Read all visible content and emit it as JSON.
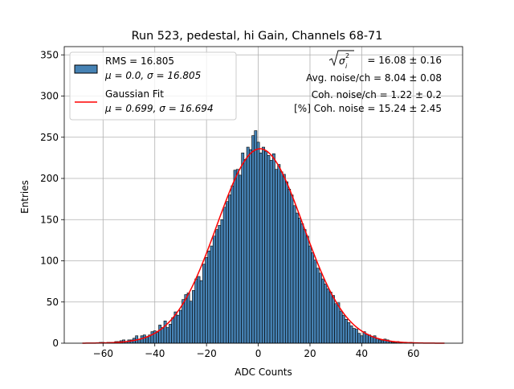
{
  "chart_data": {
    "type": "bar",
    "title": "Run 523, pedestal, hi Gain, Channels 68-71",
    "xlabel": "ADC Counts",
    "ylabel": "Entries",
    "xlim": [
      -75,
      79
    ],
    "ylim": [
      0,
      360
    ],
    "xticks": [
      -60,
      -40,
      -20,
      0,
      20,
      40,
      60
    ],
    "yticks": [
      0,
      50,
      100,
      150,
      200,
      250,
      300,
      350
    ],
    "grid": true,
    "legend_position": "top-left",
    "series": [
      {
        "name": "RMS = 16.805",
        "subtitle": "μ = 0.0, σ = 16.805",
        "kind": "histogram",
        "color": "#4682b4",
        "edge_color": "#000000",
        "bin_width": 1,
        "x": [
          -68,
          -67,
          -66,
          -65,
          -64,
          -63,
          -62,
          -61,
          -60,
          -59,
          -58,
          -57,
          -56,
          -55,
          -54,
          -53,
          -52,
          -51,
          -50,
          -49,
          -48,
          -47,
          -46,
          -45,
          -44,
          -43,
          -42,
          -41,
          -40,
          -39,
          -38,
          -37,
          -36,
          -35,
          -34,
          -33,
          -32,
          -31,
          -30,
          -29,
          -28,
          -27,
          -26,
          -25,
          -24,
          -23,
          -22,
          -21,
          -20,
          -19,
          -18,
          -17,
          -16,
          -15,
          -14,
          -13,
          -12,
          -11,
          -10,
          -9,
          -8,
          -7,
          -6,
          -5,
          -4,
          -3,
          -2,
          -1,
          0,
          1,
          2,
          3,
          4,
          5,
          6,
          7,
          8,
          9,
          10,
          11,
          12,
          13,
          14,
          15,
          16,
          17,
          18,
          19,
          20,
          21,
          22,
          23,
          24,
          25,
          26,
          27,
          28,
          29,
          30,
          31,
          32,
          33,
          34,
          35,
          36,
          37,
          38,
          39,
          40,
          41,
          42,
          43,
          44,
          45,
          46,
          47,
          48,
          49,
          50,
          51,
          52,
          53,
          54,
          55,
          56,
          57,
          58,
          59,
          60,
          61,
          62,
          63,
          64,
          65,
          66,
          67,
          68,
          69,
          70,
          71,
          72
        ],
        "values": [
          0,
          0,
          0,
          0,
          0,
          0,
          0,
          1,
          1,
          0,
          1,
          1,
          1,
          2,
          2,
          3,
          4,
          2,
          4,
          4,
          6,
          9,
          5,
          9,
          10,
          8,
          10,
          14,
          15,
          13,
          22,
          19,
          27,
          19,
          23,
          31,
          38,
          34,
          40,
          53,
          59,
          61,
          51,
          64,
          78,
          81,
          76,
          96,
          104,
          112,
          118,
          130,
          138,
          143,
          150,
          165,
          172,
          180,
          191,
          210,
          211,
          204,
          231,
          223,
          238,
          235,
          252,
          258,
          244,
          231,
          238,
          233,
          228,
          222,
          230,
          211,
          217,
          208,
          205,
          196,
          187,
          180,
          167,
          158,
          152,
          145,
          138,
          130,
          118,
          110,
          101,
          91,
          85,
          78,
          72,
          66,
          62,
          58,
          48,
          49,
          39,
          34,
          29,
          25,
          21,
          18,
          17,
          12,
          9,
          14,
          11,
          10,
          8,
          9,
          6,
          4,
          3,
          5,
          4,
          2,
          1,
          1,
          2,
          1,
          0,
          1,
          0,
          1,
          0,
          0,
          0,
          0,
          0,
          0,
          0,
          0,
          0,
          0,
          0,
          0,
          0
        ]
      },
      {
        "name": "Gaussian Fit",
        "subtitle": "μ = 0.699, σ = 16.694",
        "kind": "line",
        "color": "#ff0000",
        "mu": 0.699,
        "sigma": 16.694,
        "amplitude": 236,
        "x_range": [
          -68,
          72
        ]
      }
    ],
    "annotations": [
      {
        "prefix": "√",
        "term": "σ",
        "super": "2",
        "sub": "i",
        "value": " = 16.08 ± 0.16"
      },
      {
        "text": "Avg. noise/ch = 8.04 ± 0.08"
      },
      {
        "text": "Coh. noise/ch = 1.22 ± 0.2"
      },
      {
        "text": "[%] Coh. noise = 15.24 ± 2.45"
      }
    ]
  }
}
